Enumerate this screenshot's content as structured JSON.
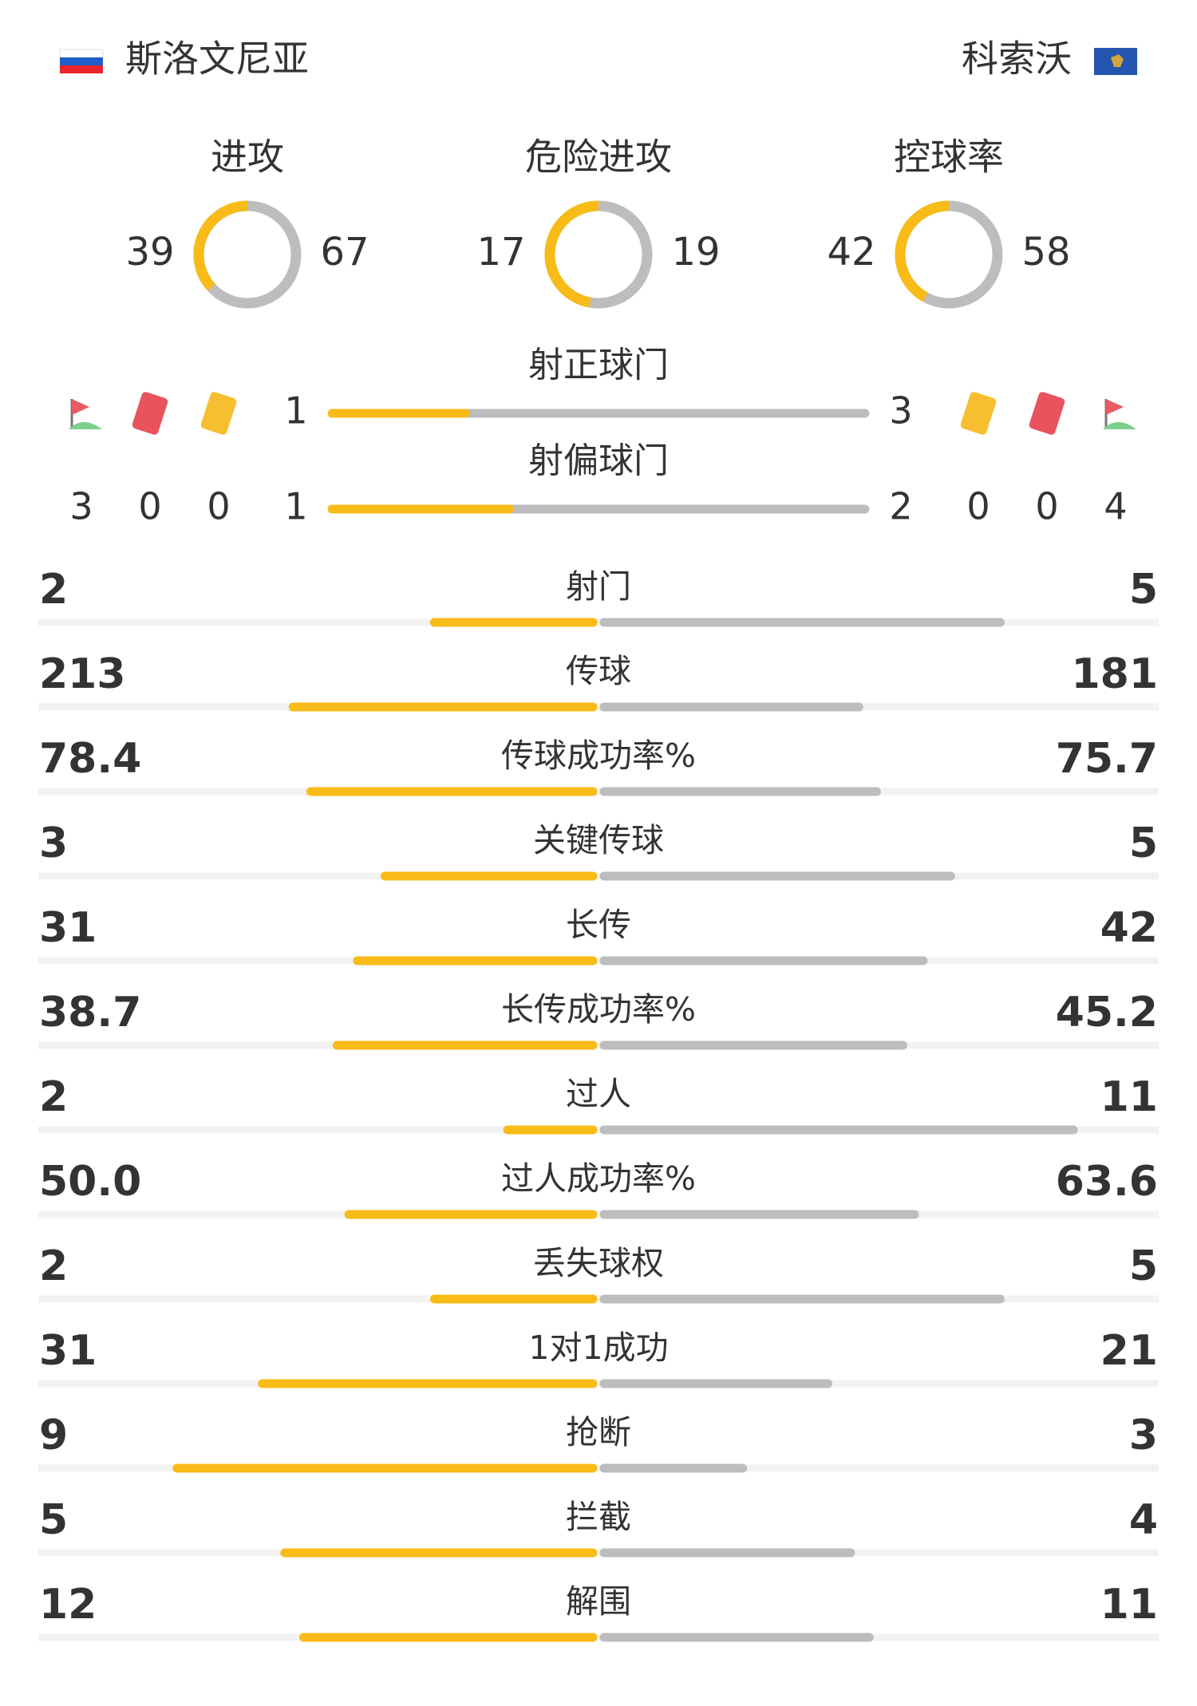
{
  "header": {
    "home_team": "斯洛文尼亚",
    "away_team": "科索沃"
  },
  "donuts": [
    {
      "label": "进攻",
      "home": 39,
      "away": 67
    },
    {
      "label": "危险进攻",
      "home": 17,
      "away": 19
    },
    {
      "label": "控球率",
      "home": 42,
      "away": 58
    }
  ],
  "shots": [
    {
      "label": "射正球门",
      "home": 1,
      "away": 3
    },
    {
      "label": "射偏球门",
      "home": 1,
      "away": 2
    }
  ],
  "cards": {
    "home": {
      "corners": 3,
      "red": 0,
      "yellow": 0
    },
    "away": {
      "yellow": 0,
      "red": 0,
      "corners": 4
    }
  },
  "stats": [
    {
      "label": "射门",
      "home": 2,
      "away": 5
    },
    {
      "label": "传球",
      "home": 213,
      "away": 181
    },
    {
      "label": "传球成功率%",
      "home": 78.4,
      "away": 75.7
    },
    {
      "label": "关键传球",
      "home": 3,
      "away": 5
    },
    {
      "label": "长传",
      "home": 31,
      "away": 42
    },
    {
      "label": "长传成功率%",
      "home": 38.7,
      "away": 45.2
    },
    {
      "label": "过人",
      "home": 2,
      "away": 11
    },
    {
      "label": "过人成功率%",
      "home": 50,
      "home_label": "50.0",
      "away": 63.6
    },
    {
      "label": "丢失球权",
      "home": 2,
      "away": 5
    },
    {
      "label": "1对1成功",
      "home": 31,
      "away": 21
    },
    {
      "label": "抢断",
      "home": 9,
      "away": 3
    },
    {
      "label": "拦截",
      "home": 5,
      "away": 4
    },
    {
      "label": "解围",
      "home": 12,
      "away": 11
    }
  ]
}
